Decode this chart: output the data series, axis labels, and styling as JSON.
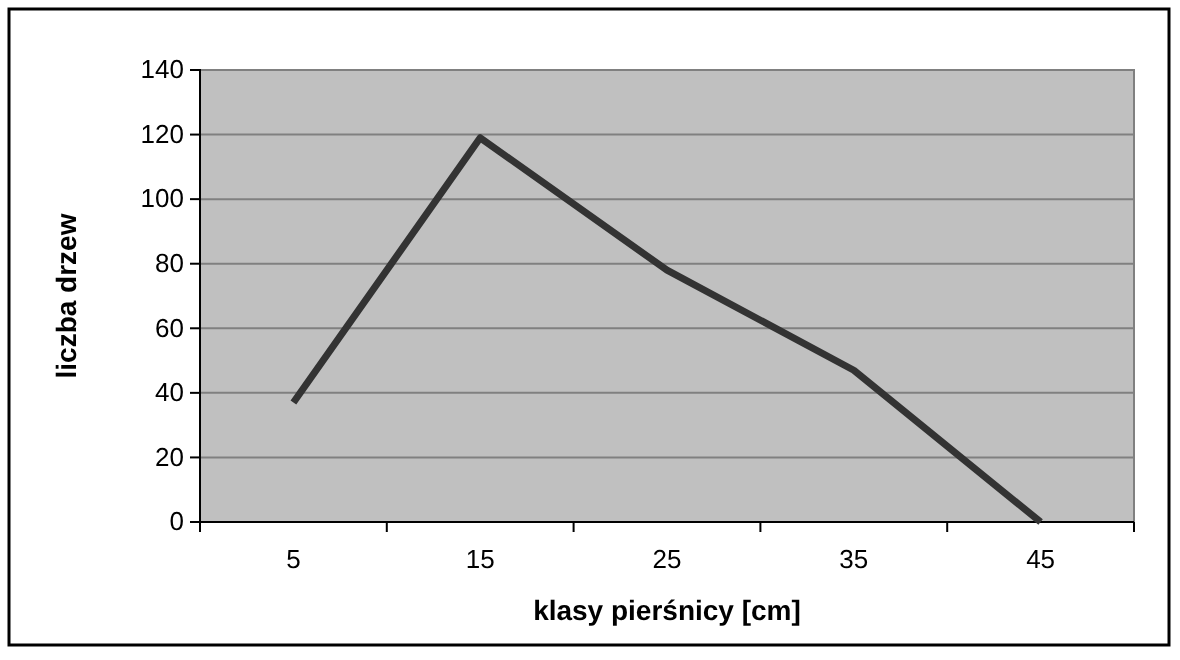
{
  "chart_data": {
    "type": "line",
    "categories": [
      "5",
      "15",
      "25",
      "35",
      "45"
    ],
    "series": [
      {
        "color": "#333333",
        "values": [
          37,
          119,
          78,
          47,
          0
        ]
      }
    ],
    "xlabel": "klasy pierśnicy [cm]",
    "ylabel": "liczba drzew",
    "ylim": [
      0,
      140
    ],
    "yticks": [
      0,
      20,
      40,
      60,
      80,
      100,
      120,
      140
    ],
    "grid": "y",
    "marker": "none",
    "line_style": "solid"
  }
}
